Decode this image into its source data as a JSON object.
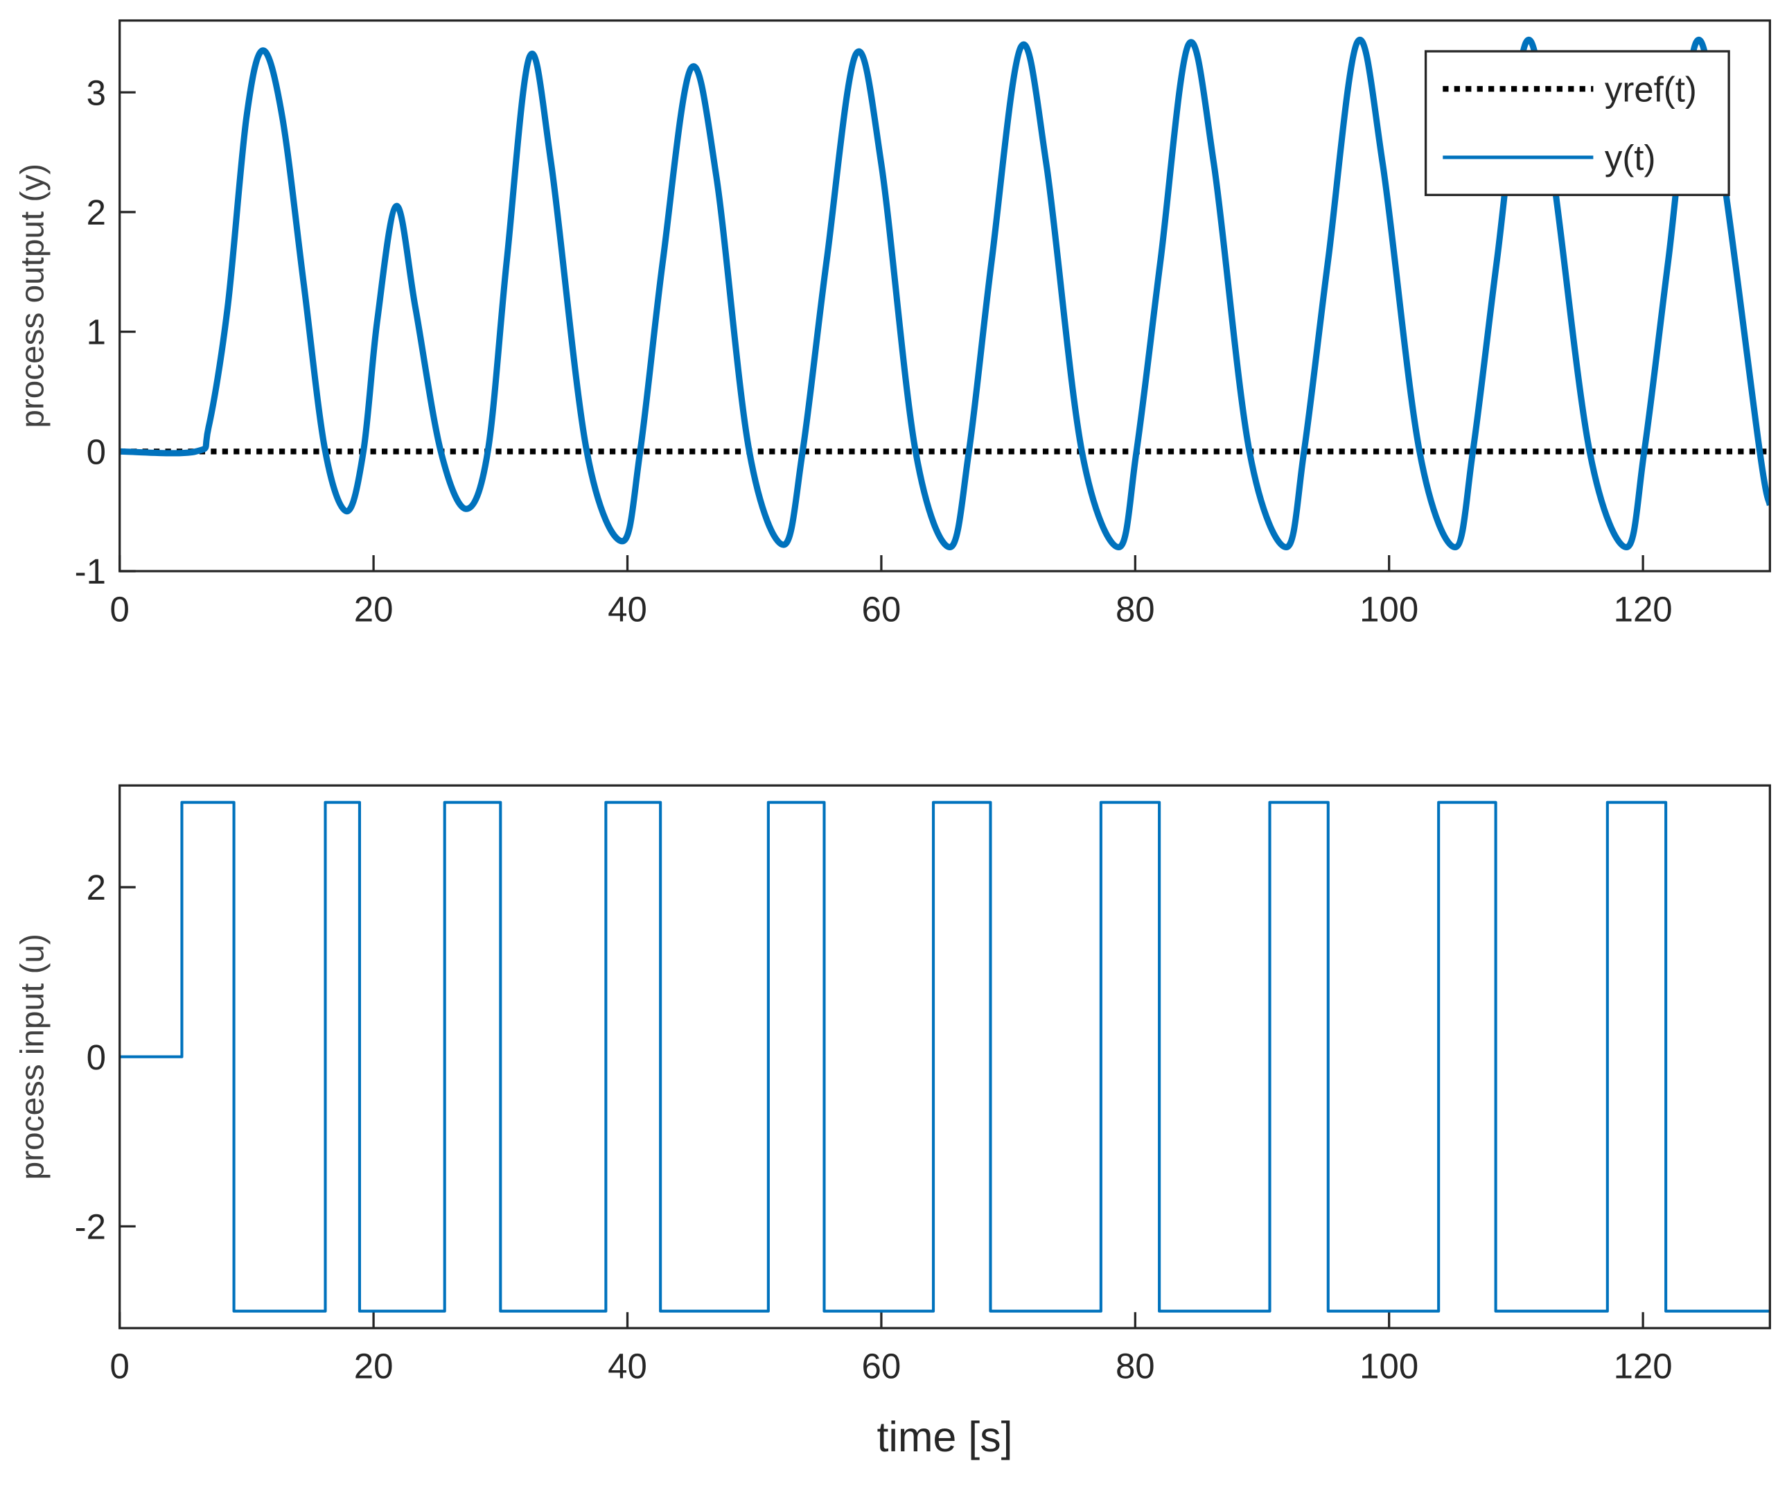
{
  "chart_data": [
    {
      "type": "line",
      "ylabel": "process output (y)",
      "x": [
        0,
        6,
        7,
        8.5,
        10,
        11.3,
        12.8,
        14.5,
        16.2,
        17.9,
        19.2,
        20.3,
        21.8,
        23.3,
        25.3,
        27.3,
        29.0,
        30.5,
        32.3,
        34,
        36.8,
        39.6,
        41.0,
        42.8,
        45,
        47,
        49.6,
        52.3,
        53.8,
        55.7,
        58,
        60,
        62.7,
        65.4,
        66.9,
        68.7,
        71,
        73,
        75.8,
        78.7,
        80.1,
        82,
        84.2,
        86.2,
        89,
        91.9,
        93.3,
        95.2,
        97.5,
        99.5,
        102.4,
        105.2,
        106.6,
        108.5,
        110.8,
        112.8,
        115.8,
        118.7,
        120.1,
        122,
        124.2,
        126.2,
        129.2,
        130
      ],
      "series": [
        {
          "name": "yref(t)",
          "color": "#000000",
          "linestyle": "dotted",
          "values": [
            0,
            0,
            0,
            0,
            0,
            0,
            0,
            0,
            0,
            0,
            0,
            0,
            0,
            0,
            0,
            0,
            0,
            0,
            0,
            0,
            0,
            0,
            0,
            0,
            0,
            0,
            0,
            0,
            0,
            0,
            0,
            0,
            0,
            0,
            0,
            0,
            0,
            0,
            0,
            0,
            0,
            0,
            0,
            0,
            0,
            0,
            0,
            0,
            0,
            0,
            0,
            0,
            0,
            0,
            0,
            0,
            0,
            0,
            0,
            0,
            0,
            0,
            0,
            0
          ]
        },
        {
          "name": "y(t)",
          "color": "#0072bd",
          "linestyle": "solid",
          "values": [
            0,
            0,
            0.2,
            1.2,
            2.8,
            3.35,
            2.8,
            1.4,
            0,
            -0.5,
            0,
            1.1,
            2.05,
            1.2,
            0,
            -0.48,
            0,
            1.6,
            3.3,
            2.4,
            0,
            -0.75,
            0,
            1.6,
            3.2,
            2.3,
            0,
            -0.78,
            0,
            1.6,
            3.32,
            2.4,
            0,
            -0.8,
            0,
            1.6,
            3.38,
            2.4,
            0,
            -0.8,
            0,
            1.6,
            3.4,
            2.4,
            0,
            -0.8,
            0,
            1.6,
            3.42,
            2.4,
            0,
            -0.8,
            0,
            1.6,
            3.42,
            2.4,
            0,
            -0.8,
            0,
            1.6,
            3.42,
            2.4,
            0,
            -0.45
          ]
        }
      ],
      "xlim": [
        0,
        130
      ],
      "xticks": [
        0,
        20,
        40,
        60,
        80,
        100,
        120
      ],
      "ylim": [
        -1,
        3.6
      ],
      "yticks": [
        -1,
        0,
        1,
        2,
        3
      ],
      "legend": "northeast"
    },
    {
      "type": "line",
      "ylabel": "process input (u)",
      "xlabel": "time [s]",
      "step": "post",
      "x": [
        0,
        4.9,
        9.0,
        16.2,
        18.9,
        25.6,
        30.0,
        38.3,
        42.6,
        51.1,
        55.5,
        64.1,
        68.6,
        77.3,
        81.9,
        90.6,
        95.2,
        103.9,
        108.4,
        117.2,
        121.8,
        130
      ],
      "series": [
        {
          "color": "#0072bd",
          "linestyle": "solid",
          "values": [
            0,
            3,
            -3,
            3,
            -3,
            3,
            -3,
            3,
            -3,
            3,
            -3,
            3,
            -3,
            3,
            -3,
            3,
            -3,
            3,
            -3,
            3,
            -3,
            -3
          ]
        }
      ],
      "xlim": [
        0,
        130
      ],
      "xticks": [
        0,
        20,
        40,
        60,
        80,
        100,
        120
      ],
      "ylim": [
        -3.2,
        3.2
      ],
      "yticks": [
        -2,
        0,
        2
      ]
    }
  ]
}
